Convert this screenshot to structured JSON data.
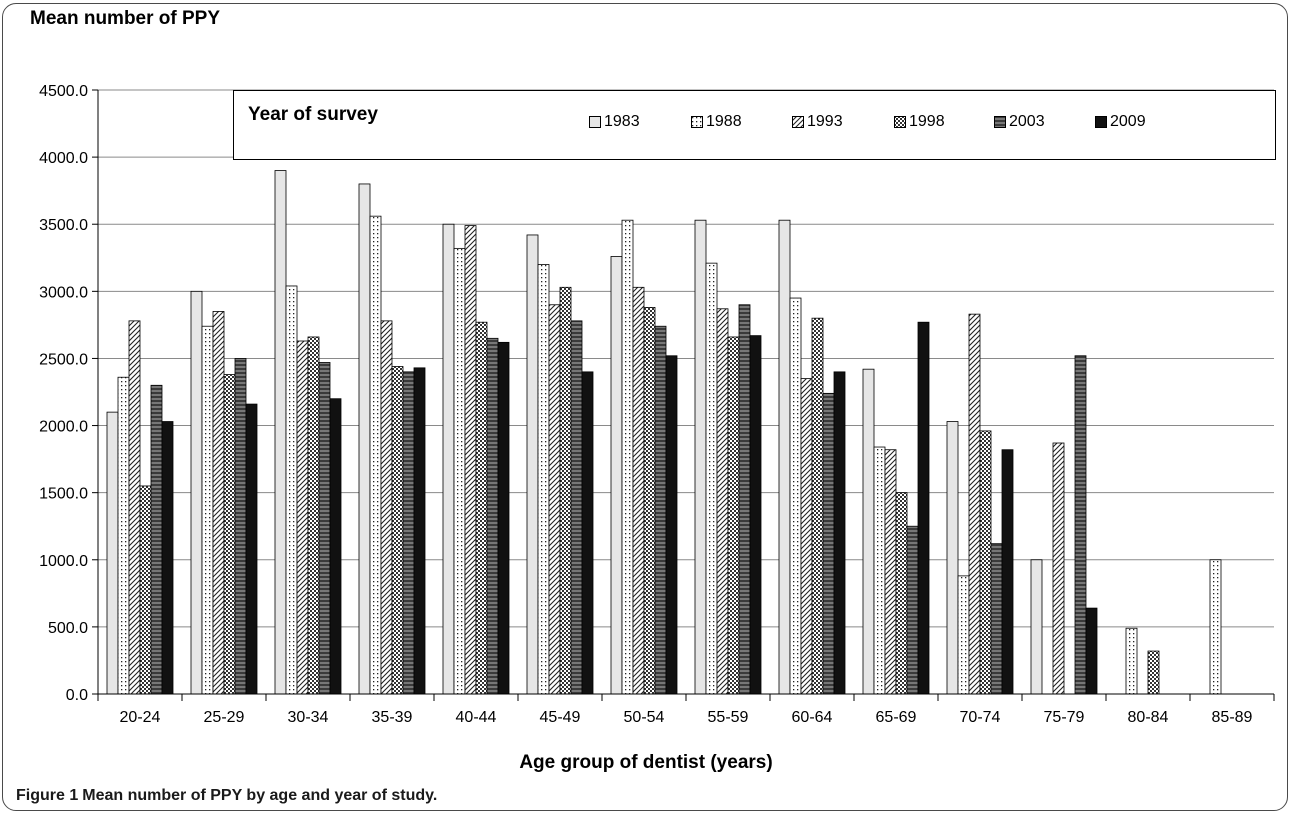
{
  "title": "Mean number of PPY",
  "x_axis_title": "Age group of dentist (years)",
  "caption": {
    "label": "Figure 1",
    "text": "Mean number of PPY by age and year of study."
  },
  "legend": {
    "title": "Year of survey"
  },
  "colors": {
    "1983": "#e6e6e6",
    "1988": "#ffffff",
    "1993": "#ffffff",
    "1998": "#9a9a9a",
    "2003": "#5c5c5c",
    "2009": "#111111"
  },
  "chart_data": {
    "type": "bar",
    "title": "Mean number of PPY",
    "xlabel": "Age group of dentist (years)",
    "ylabel": "",
    "ylim": [
      0,
      4500
    ],
    "yticks": [
      "0.0",
      "500.0",
      "1000.0",
      "1500.0",
      "2000.0",
      "2500.0",
      "3000.0",
      "3500.0",
      "4000.0",
      "4500.0"
    ],
    "grid": true,
    "legend_position": "top",
    "categories": [
      "20-24",
      "25-29",
      "30-34",
      "35-39",
      "40-44",
      "45-49",
      "50-54",
      "55-59",
      "60-64",
      "65-69",
      "70-74",
      "75-79",
      "80-84",
      "85-89"
    ],
    "series": [
      {
        "name": "1983",
        "values": [
          2100,
          3000,
          3900,
          3800,
          3500,
          3420,
          3260,
          3530,
          3530,
          2420,
          2030,
          1000,
          0,
          0
        ]
      },
      {
        "name": "1988",
        "values": [
          2360,
          2740,
          3040,
          3560,
          3320,
          3200,
          3530,
          3210,
          2950,
          1840,
          880,
          0,
          490,
          1000
        ]
      },
      {
        "name": "1993",
        "values": [
          2780,
          2850,
          2630,
          2780,
          3490,
          2900,
          3030,
          2870,
          2350,
          1820,
          2830,
          1870,
          0,
          0
        ]
      },
      {
        "name": "1998",
        "values": [
          1550,
          2380,
          2660,
          2440,
          2770,
          3030,
          2880,
          2660,
          2800,
          1500,
          1960,
          0,
          320,
          0
        ]
      },
      {
        "name": "2003",
        "values": [
          2300,
          2500,
          2470,
          2400,
          2650,
          2780,
          2740,
          2900,
          2240,
          1250,
          1120,
          2520,
          0,
          0
        ]
      },
      {
        "name": "2009",
        "values": [
          2030,
          2160,
          2200,
          2430,
          2620,
          2400,
          2520,
          2670,
          2400,
          2770,
          1820,
          640,
          0,
          0
        ]
      }
    ]
  }
}
